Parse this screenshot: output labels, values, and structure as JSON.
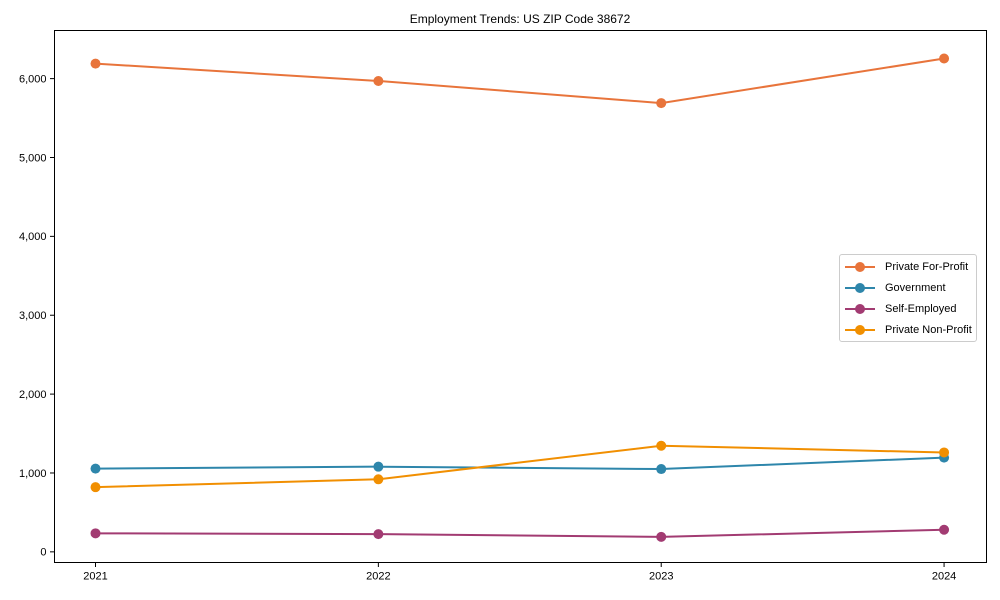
{
  "chart_data": {
    "type": "line",
    "title": "Employment Trends: US ZIP Code 38672",
    "x": [
      2021,
      2022,
      2023,
      2024
    ],
    "x_tick_labels": [
      "2021",
      "2022",
      "2023",
      "2024"
    ],
    "y_ticks": [
      0,
      1000,
      2000,
      3000,
      4000,
      5000,
      6000
    ],
    "y_tick_labels": [
      "0",
      "1,000",
      "2,000",
      "3,000",
      "4,000",
      "5,000",
      "6,000"
    ],
    "series": [
      {
        "name": "Private For-Profit",
        "color": "#E8743B",
        "values": [
          6190,
          5970,
          5690,
          6255
        ]
      },
      {
        "name": "Government",
        "color": "#2E86AB",
        "values": [
          1055,
          1080,
          1050,
          1195
        ]
      },
      {
        "name": "Self-Employed",
        "color": "#A23B72",
        "values": [
          235,
          225,
          190,
          280
        ]
      },
      {
        "name": "Private Non-Profit",
        "color": "#F18F01",
        "values": [
          820,
          920,
          1345,
          1260
        ]
      }
    ],
    "xlabel": "",
    "ylabel": "",
    "xlim": [
      2020.855,
      2024.15
    ],
    "ylim": [
      -135,
      6610
    ],
    "grid": false,
    "legend_position": "center-right",
    "marker": "circle",
    "marker_size": 5,
    "line_width": 2,
    "spine_color": "#000000",
    "background_color": "#ffffff"
  }
}
